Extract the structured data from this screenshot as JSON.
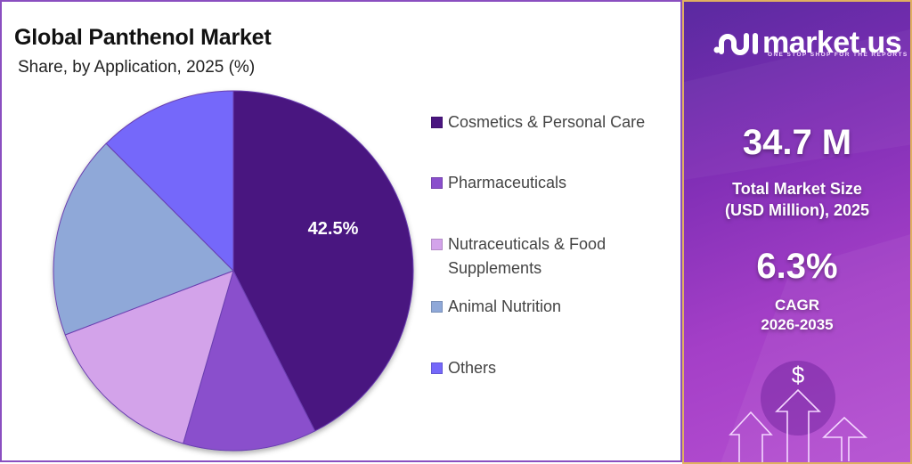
{
  "header": {
    "title": "Global Panthenol Market",
    "subtitle": "Share, by Application, 2025 (%)"
  },
  "chart_data": {
    "type": "pie",
    "title": "Global Panthenol Market",
    "subtitle": "Share, by Application, 2025 (%)",
    "categories": [
      "Cosmetics & Personal Care",
      "Pharmaceuticals",
      "Nutraceuticals & Food Supplements",
      "Animal Nutrition",
      "Others"
    ],
    "values": [
      42.5,
      12.0,
      14.7,
      18.3,
      12.5
    ],
    "colors": [
      "#4a1580",
      "#8a4fcc",
      "#d3a3ea",
      "#8fa8d8",
      "#7568fa"
    ],
    "data_labels": [
      "42.5%",
      "",
      "",
      "",
      ""
    ],
    "start_angle_deg": 0,
    "direction": "clockwise",
    "legend_position": "right"
  },
  "pie_label": "42.5%",
  "legend": [
    {
      "label": "Cosmetics & Personal Care",
      "color": "#4a1580"
    },
    {
      "label": "Pharmaceuticals",
      "color": "#8a4fcc"
    },
    {
      "label": "Nutraceuticals & Food Supplements",
      "color": "#d3a3ea"
    },
    {
      "label": "Animal Nutrition",
      "color": "#8fa8d8"
    },
    {
      "label": "Others",
      "color": "#7568fa"
    }
  ],
  "sidebar": {
    "brand": "market.us",
    "tagline": "ONE STOP SHOP FOR THE REPORTS",
    "market_size_value": "34.7 M",
    "market_size_label_1": "Total Market Size",
    "market_size_label_2": "(USD Million), 2025",
    "cagr_value": "6.3%",
    "cagr_label_1": "CAGR",
    "cagr_label_2": "2026-2035",
    "currency_symbol": "$"
  }
}
